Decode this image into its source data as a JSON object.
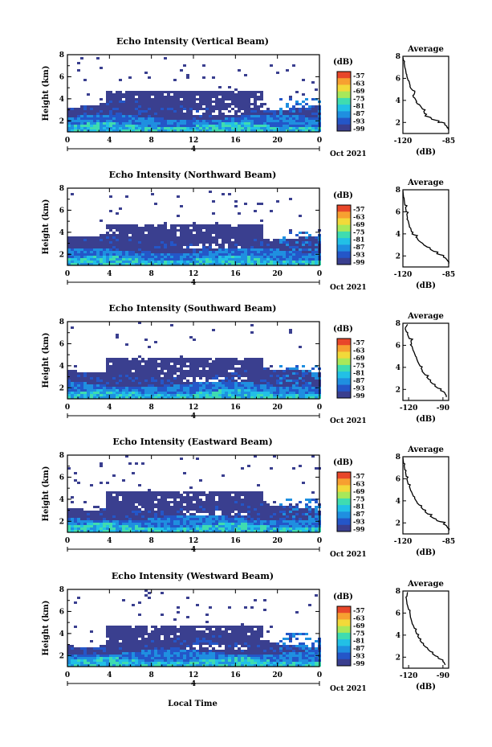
{
  "common": {
    "ylabel": "Height (km)",
    "x_ticks": [
      "0",
      "4",
      "8",
      "12",
      "16",
      "20",
      "0"
    ],
    "y_ticks": [
      "2",
      "4",
      "6",
      "8"
    ],
    "day_marker": "4",
    "date_label": "Oct 2021",
    "cb_unit": "(dB)",
    "cb_ticks": [
      "-57",
      "-63",
      "-69",
      "-75",
      "-81",
      "-87",
      "-93",
      "-99"
    ],
    "avg_title": "Average",
    "avg_xlabel": "(dB)",
    "avg_yticks": [
      "2",
      "4",
      "6",
      "8"
    ],
    "xlabel": "Local Time",
    "colors": [
      "#3a3f8f",
      "#2456c8",
      "#1f8fe0",
      "#22c0e6",
      "#3fdcb0",
      "#a8e85a",
      "#f2d93a",
      "#f7a031",
      "#e8472a"
    ]
  },
  "chart_data": [
    {
      "type": "heatmap",
      "title": "Echo Intensity (Vertical Beam)",
      "x_range_hours": [
        0,
        24
      ],
      "y_range_km": [
        1,
        8
      ],
      "avg_xticks": [
        "-120",
        "-85"
      ],
      "avg_xlim": [
        -120,
        -85
      ],
      "avg_profile": [
        [
          -85,
          1.3
        ],
        [
          -86,
          1.5
        ],
        [
          -88,
          1.8
        ],
        [
          -93,
          2.0
        ],
        [
          -98,
          2.3
        ],
        [
          -103,
          2.6
        ],
        [
          -104,
          3.0
        ],
        [
          -106,
          3.4
        ],
        [
          -109,
          3.7
        ],
        [
          -110,
          4.0
        ],
        [
          -112,
          4.3
        ],
        [
          -111,
          4.7
        ],
        [
          -114,
          5.1
        ],
        [
          -115,
          5.6
        ],
        [
          -117,
          6.2
        ],
        [
          -118,
          6.8
        ],
        [
          -119,
          7.4
        ],
        [
          -120,
          7.9
        ]
      ]
    },
    {
      "type": "heatmap",
      "title": "Echo Intensity (Northward Beam)",
      "x_range_hours": [
        0,
        24
      ],
      "y_range_km": [
        1,
        8
      ],
      "avg_xticks": [
        "-120",
        "-85"
      ],
      "avg_xlim": [
        -120,
        -85
      ],
      "avg_profile": [
        [
          -85,
          1.3
        ],
        [
          -86,
          1.6
        ],
        [
          -89,
          1.9
        ],
        [
          -94,
          2.2
        ],
        [
          -99,
          2.6
        ],
        [
          -104,
          3.0
        ],
        [
          -108,
          3.4
        ],
        [
          -110,
          3.7
        ],
        [
          -113,
          4.0
        ],
        [
          -114,
          4.5
        ],
        [
          -116,
          5.2
        ],
        [
          -117,
          5.8
        ],
        [
          -118,
          6.4
        ],
        [
          -119,
          7.1
        ],
        [
          -120,
          7.9
        ]
      ]
    },
    {
      "type": "heatmap",
      "title": "Echo Intensity (Southward Beam)",
      "x_range_hours": [
        0,
        24
      ],
      "y_range_km": [
        1,
        8
      ],
      "avg_xticks": [
        "-120",
        "-90"
      ],
      "avg_xlim": [
        -125,
        -85
      ],
      "avg_profile": [
        [
          -87,
          1.3
        ],
        [
          -88,
          1.6
        ],
        [
          -92,
          1.9
        ],
        [
          -97,
          2.3
        ],
        [
          -101,
          2.7
        ],
        [
          -104,
          3.1
        ],
        [
          -107,
          3.5
        ],
        [
          -109,
          3.9
        ],
        [
          -111,
          4.3
        ],
        [
          -113,
          4.8
        ],
        [
          -115,
          5.3
        ],
        [
          -117,
          5.9
        ],
        [
          -118,
          6.4
        ],
        [
          -121,
          7.0
        ],
        [
          -123,
          7.5
        ],
        [
          -121,
          7.9
        ]
      ]
    },
    {
      "type": "heatmap",
      "title": "Echo Intensity (Eastward Beam)",
      "x_range_hours": [
        0,
        24
      ],
      "y_range_km": [
        1,
        8
      ],
      "avg_xticks": [
        "-120",
        "-85"
      ],
      "avg_xlim": [
        -120,
        -85
      ],
      "avg_profile": [
        [
          -85,
          1.3
        ],
        [
          -86,
          1.6
        ],
        [
          -89,
          1.9
        ],
        [
          -94,
          2.2
        ],
        [
          -99,
          2.6
        ],
        [
          -103,
          3.0
        ],
        [
          -106,
          3.4
        ],
        [
          -109,
          3.8
        ],
        [
          -111,
          4.2
        ],
        [
          -113,
          4.7
        ],
        [
          -115,
          5.3
        ],
        [
          -117,
          6.0
        ],
        [
          -118,
          6.6
        ],
        [
          -119,
          7.2
        ],
        [
          -120,
          7.9
        ]
      ]
    },
    {
      "type": "heatmap",
      "title": "Echo Intensity (Westward Beam)",
      "x_range_hours": [
        0,
        24
      ],
      "y_range_km": [
        1,
        8
      ],
      "avg_xticks": [
        "-120",
        "-90"
      ],
      "avg_xlim": [
        -125,
        -85
      ],
      "avg_profile": [
        [
          -88,
          1.3
        ],
        [
          -90,
          1.6
        ],
        [
          -94,
          1.9
        ],
        [
          -99,
          2.3
        ],
        [
          -103,
          2.7
        ],
        [
          -107,
          3.1
        ],
        [
          -110,
          3.5
        ],
        [
          -112,
          3.9
        ],
        [
          -114,
          4.4
        ],
        [
          -116,
          4.9
        ],
        [
          -118,
          5.5
        ],
        [
          -119,
          6.1
        ],
        [
          -121,
          6.7
        ],
        [
          -122,
          7.3
        ],
        [
          -121,
          7.9
        ]
      ]
    }
  ]
}
